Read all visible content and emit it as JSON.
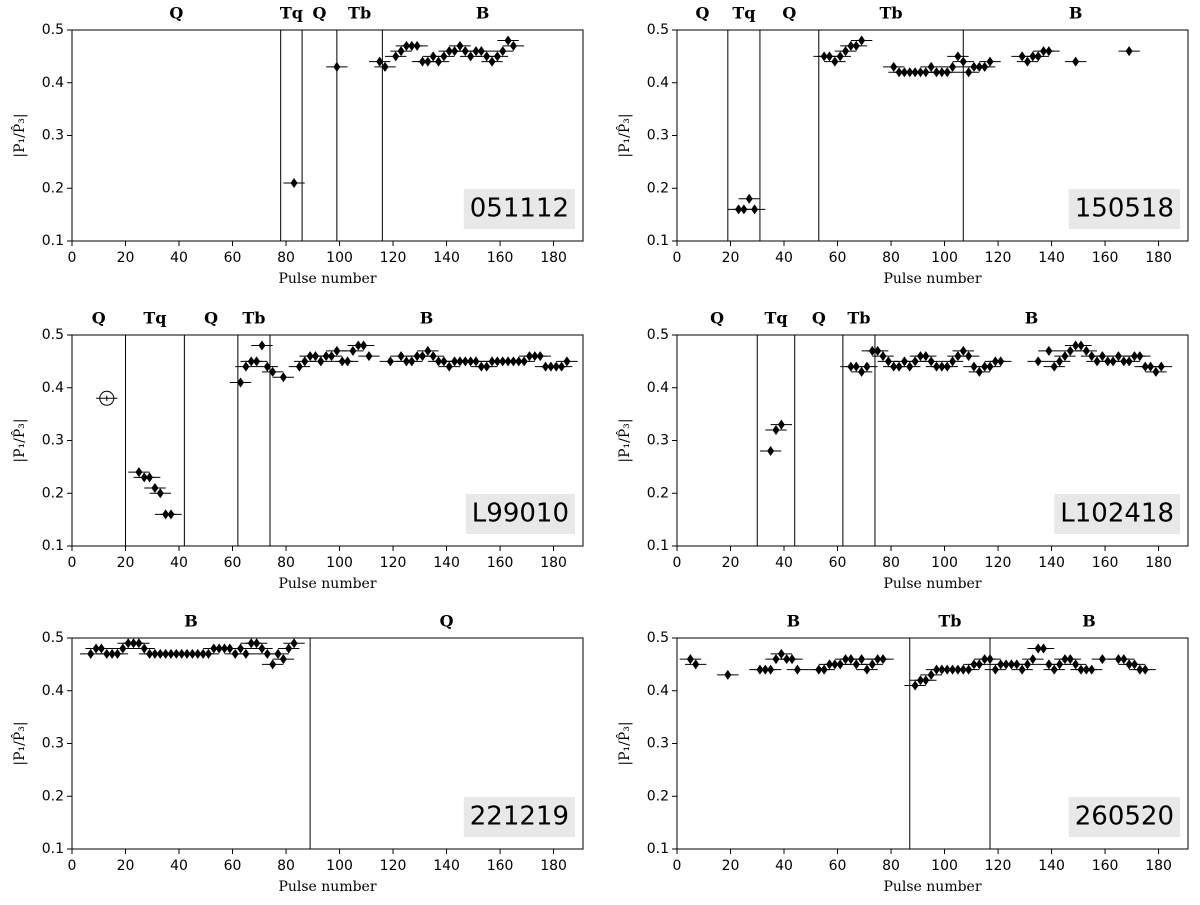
{
  "chart_data": [
    {
      "type": "scatter",
      "label": "051112",
      "xlabel": "Pulse number",
      "ylabel": "|P₁/P̂₃|",
      "regions": [
        "Q",
        "Tq",
        "Q",
        "Tb",
        "B"
      ],
      "boundaries": [
        78,
        86,
        99,
        116
      ],
      "xlim": [
        0,
        191
      ],
      "ylim": [
        0.1,
        0.5
      ],
      "xticks": [
        0,
        20,
        40,
        60,
        80,
        100,
        120,
        140,
        160,
        180
      ],
      "yticks": [
        0.1,
        0.2,
        0.3,
        0.4,
        0.5
      ],
      "xerr": 4,
      "yerr": 0.005,
      "series": [
        {
          "marker": "diamond",
          "color": "#000000",
          "x": [
            83,
            99,
            115,
            117,
            121,
            123,
            125,
            127,
            129,
            131,
            133,
            135,
            137,
            139,
            141,
            143,
            145,
            147,
            149,
            151,
            153,
            155,
            157,
            159,
            161,
            163,
            165
          ],
          "values": [
            0.21,
            0.43,
            0.44,
            0.43,
            0.45,
            0.46,
            0.47,
            0.47,
            0.47,
            0.44,
            0.44,
            0.45,
            0.44,
            0.45,
            0.46,
            0.46,
            0.47,
            0.46,
            0.45,
            0.46,
            0.46,
            0.45,
            0.44,
            0.45,
            0.46,
            0.48,
            0.47
          ]
        }
      ]
    },
    {
      "type": "scatter",
      "label": "150518",
      "xlabel": "Pulse number",
      "ylabel": "|P₁/P̂₃|",
      "regions": [
        "Q",
        "Tq",
        "Q",
        "Tb",
        "B"
      ],
      "boundaries": [
        19,
        31,
        53,
        107
      ],
      "xlim": [
        0,
        191
      ],
      "ylim": [
        0.1,
        0.5
      ],
      "xticks": [
        0,
        20,
        40,
        60,
        80,
        100,
        120,
        140,
        160,
        180
      ],
      "yticks": [
        0.1,
        0.2,
        0.3,
        0.4,
        0.5
      ],
      "xerr": 4,
      "yerr": 0.005,
      "series": [
        {
          "marker": "diamond",
          "color": "#000000",
          "x": [
            23,
            25,
            27,
            29,
            55,
            57,
            59,
            61,
            63,
            65,
            67,
            69,
            81,
            83,
            85,
            87,
            89,
            91,
            93,
            95,
            97,
            99,
            101,
            103,
            105,
            107,
            109,
            111,
            113,
            115,
            117,
            129,
            131,
            133,
            135,
            137,
            139,
            149,
            169
          ],
          "values": [
            0.16,
            0.16,
            0.18,
            0.16,
            0.45,
            0.45,
            0.44,
            0.45,
            0.46,
            0.47,
            0.47,
            0.48,
            0.43,
            0.42,
            0.42,
            0.42,
            0.42,
            0.42,
            0.42,
            0.43,
            0.42,
            0.42,
            0.42,
            0.43,
            0.45,
            0.44,
            0.42,
            0.43,
            0.43,
            0.43,
            0.44,
            0.45,
            0.44,
            0.45,
            0.45,
            0.46,
            0.46,
            0.44,
            0.46
          ]
        }
      ]
    },
    {
      "type": "scatter",
      "label": "L99010",
      "xlabel": "Pulse number",
      "ylabel": "|P₁/P̂₃|",
      "regions": [
        "Q",
        "Tq",
        "Q",
        "Tb",
        "B"
      ],
      "boundaries": [
        20,
        42,
        62,
        74
      ],
      "xlim": [
        0,
        191
      ],
      "ylim": [
        0.1,
        0.5
      ],
      "xticks": [
        0,
        20,
        40,
        60,
        80,
        100,
        120,
        140,
        160,
        180
      ],
      "yticks": [
        0.1,
        0.2,
        0.3,
        0.4,
        0.5
      ],
      "xerr": 4,
      "yerr": 0.005,
      "series": [
        {
          "marker": "open-circle",
          "color": "#000000",
          "x": [
            13
          ],
          "values": [
            0.38
          ]
        },
        {
          "marker": "diamond",
          "color": "#000000",
          "x": [
            25,
            27,
            29,
            31,
            33,
            35,
            37,
            63,
            65,
            67,
            69,
            71,
            73,
            75,
            79,
            85,
            87,
            89,
            91,
            93,
            95,
            97,
            99,
            101,
            103,
            105,
            107,
            109,
            111,
            119,
            123,
            125,
            127,
            129,
            131,
            133,
            135,
            137,
            139,
            141,
            143,
            145,
            147,
            149,
            151,
            153,
            155,
            157,
            159,
            161,
            163,
            165,
            167,
            169,
            171,
            173,
            175,
            177,
            179,
            181,
            183,
            185
          ],
          "values": [
            0.24,
            0.23,
            0.23,
            0.21,
            0.2,
            0.16,
            0.16,
            0.41,
            0.44,
            0.45,
            0.45,
            0.48,
            0.44,
            0.43,
            0.42,
            0.44,
            0.45,
            0.46,
            0.46,
            0.45,
            0.46,
            0.46,
            0.47,
            0.45,
            0.45,
            0.47,
            0.48,
            0.48,
            0.46,
            0.45,
            0.46,
            0.45,
            0.45,
            0.46,
            0.46,
            0.47,
            0.46,
            0.45,
            0.45,
            0.44,
            0.45,
            0.45,
            0.45,
            0.45,
            0.45,
            0.44,
            0.44,
            0.45,
            0.45,
            0.45,
            0.45,
            0.45,
            0.45,
            0.45,
            0.46,
            0.46,
            0.46,
            0.44,
            0.44,
            0.44,
            0.44,
            0.45
          ]
        }
      ]
    },
    {
      "type": "scatter",
      "label": "L102418",
      "xlabel": "Pulse number",
      "ylabel": "|P₁/P̂₃|",
      "regions": [
        "Q",
        "Tq",
        "Q",
        "Tb",
        "B"
      ],
      "boundaries": [
        30,
        44,
        62,
        74
      ],
      "xlim": [
        0,
        191
      ],
      "ylim": [
        0.1,
        0.5
      ],
      "xticks": [
        0,
        20,
        40,
        60,
        80,
        100,
        120,
        140,
        160,
        180
      ],
      "yticks": [
        0.1,
        0.2,
        0.3,
        0.4,
        0.5
      ],
      "xerr": 4,
      "yerr": 0.005,
      "series": [
        {
          "marker": "diamond",
          "color": "#000000",
          "x": [
            35,
            37,
            39,
            65,
            67,
            69,
            71,
            73,
            75,
            77,
            79,
            81,
            83,
            85,
            87,
            89,
            91,
            93,
            95,
            97,
            99,
            101,
            103,
            105,
            107,
            109,
            111,
            113,
            115,
            117,
            119,
            121,
            135,
            139,
            141,
            143,
            145,
            147,
            149,
            151,
            153,
            155,
            157,
            159,
            161,
            163,
            165,
            167,
            169,
            171,
            173,
            175,
            177,
            179,
            181
          ],
          "values": [
            0.28,
            0.32,
            0.33,
            0.44,
            0.44,
            0.43,
            0.44,
            0.47,
            0.47,
            0.46,
            0.45,
            0.44,
            0.44,
            0.45,
            0.44,
            0.45,
            0.46,
            0.46,
            0.45,
            0.44,
            0.44,
            0.44,
            0.45,
            0.46,
            0.47,
            0.46,
            0.44,
            0.43,
            0.44,
            0.44,
            0.45,
            0.45,
            0.45,
            0.47,
            0.44,
            0.45,
            0.46,
            0.47,
            0.48,
            0.48,
            0.47,
            0.46,
            0.45,
            0.46,
            0.45,
            0.45,
            0.46,
            0.45,
            0.45,
            0.46,
            0.46,
            0.44,
            0.44,
            0.43,
            0.44
          ]
        }
      ]
    },
    {
      "type": "scatter",
      "label": "221219",
      "xlabel": "Pulse number",
      "ylabel": "|P₁/P̂₃|",
      "regions": [
        "B",
        "Q"
      ],
      "boundaries": [
        89
      ],
      "xlim": [
        0,
        191
      ],
      "ylim": [
        0.1,
        0.5
      ],
      "xticks": [
        0,
        20,
        40,
        60,
        80,
        100,
        120,
        140,
        160,
        180
      ],
      "yticks": [
        0.1,
        0.2,
        0.3,
        0.4,
        0.5
      ],
      "xerr": 4,
      "yerr": 0.005,
      "series": [
        {
          "marker": "diamond",
          "color": "#000000",
          "x": [
            7,
            9,
            11,
            13,
            15,
            17,
            19,
            21,
            23,
            25,
            27,
            29,
            31,
            33,
            35,
            37,
            39,
            41,
            43,
            45,
            47,
            49,
            51,
            53,
            55,
            57,
            59,
            61,
            63,
            65,
            67,
            69,
            71,
            73,
            75,
            77,
            79,
            81,
            83
          ],
          "values": [
            0.47,
            0.48,
            0.48,
            0.47,
            0.47,
            0.47,
            0.48,
            0.49,
            0.49,
            0.49,
            0.48,
            0.47,
            0.47,
            0.47,
            0.47,
            0.47,
            0.47,
            0.47,
            0.47,
            0.47,
            0.47,
            0.47,
            0.47,
            0.48,
            0.48,
            0.48,
            0.48,
            0.47,
            0.48,
            0.47,
            0.49,
            0.49,
            0.48,
            0.47,
            0.45,
            0.47,
            0.46,
            0.48,
            0.49
          ]
        }
      ]
    },
    {
      "type": "scatter",
      "label": "260520",
      "xlabel": "Pulse number",
      "ylabel": "|P₁/P̂₃|",
      "regions": [
        "B",
        "Tb",
        "B"
      ],
      "boundaries": [
        87,
        117
      ],
      "xlim": [
        0,
        191
      ],
      "ylim": [
        0.1,
        0.5
      ],
      "xticks": [
        0,
        20,
        40,
        60,
        80,
        100,
        120,
        140,
        160,
        180
      ],
      "yticks": [
        0.1,
        0.2,
        0.3,
        0.4,
        0.5
      ],
      "xerr": 4,
      "yerr": 0.005,
      "series": [
        {
          "marker": "diamond",
          "color": "#000000",
          "x": [
            5,
            7,
            19,
            31,
            33,
            35,
            37,
            39,
            41,
            43,
            45,
            53,
            55,
            57,
            59,
            61,
            63,
            65,
            67,
            69,
            71,
            73,
            75,
            77,
            89,
            91,
            93,
            95,
            97,
            99,
            101,
            103,
            105,
            107,
            109,
            111,
            113,
            115,
            117,
            119,
            121,
            123,
            125,
            127,
            129,
            131,
            133,
            135,
            137,
            139,
            141,
            143,
            145,
            147,
            149,
            151,
            153,
            155,
            159,
            165,
            167,
            169,
            171,
            173,
            175
          ],
          "values": [
            0.46,
            0.45,
            0.43,
            0.44,
            0.44,
            0.44,
            0.46,
            0.47,
            0.46,
            0.46,
            0.44,
            0.44,
            0.44,
            0.45,
            0.45,
            0.45,
            0.46,
            0.46,
            0.45,
            0.46,
            0.44,
            0.45,
            0.46,
            0.46,
            0.41,
            0.42,
            0.42,
            0.43,
            0.44,
            0.44,
            0.44,
            0.44,
            0.44,
            0.44,
            0.44,
            0.45,
            0.45,
            0.46,
            0.46,
            0.44,
            0.45,
            0.45,
            0.45,
            0.45,
            0.44,
            0.45,
            0.46,
            0.48,
            0.48,
            0.45,
            0.44,
            0.45,
            0.46,
            0.46,
            0.45,
            0.44,
            0.44,
            0.44,
            0.46,
            0.46,
            0.46,
            0.45,
            0.45,
            0.44,
            0.44
          ]
        }
      ]
    }
  ]
}
